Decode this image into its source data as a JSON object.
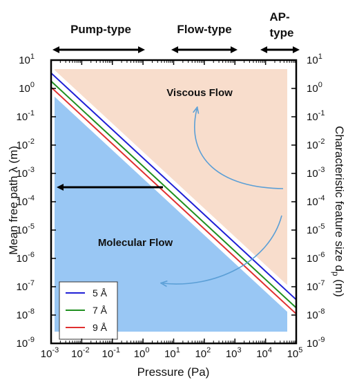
{
  "chart_data": {
    "type": "line",
    "xlabel": "Pressure (Pa)",
    "ylabel_left": "Mean free path λ (m)",
    "ylabel_right": "Characteristic feature size d",
    "ylabel_right_sub": "p",
    "ylabel_right_unit": " (m)",
    "x_scale": "log",
    "y_scale": "log",
    "xlim": [
      0.001,
      100000
    ],
    "ylim": [
      1e-09,
      10
    ],
    "x_ticks": [
      {
        "base": "10",
        "exp": "-3"
      },
      {
        "base": "10",
        "exp": "-2"
      },
      {
        "base": "10",
        "exp": "-1"
      },
      {
        "base": "10",
        "exp": "0"
      },
      {
        "base": "10",
        "exp": "1"
      },
      {
        "base": "10",
        "exp": "2"
      },
      {
        "base": "10",
        "exp": "3"
      },
      {
        "base": "10",
        "exp": "4"
      },
      {
        "base": "10",
        "exp": "5"
      }
    ],
    "y_ticks": [
      {
        "base": "10",
        "exp": "1"
      },
      {
        "base": "10",
        "exp": "0"
      },
      {
        "base": "10",
        "exp": "-1"
      },
      {
        "base": "10",
        "exp": "-2"
      },
      {
        "base": "10",
        "exp": "-3"
      },
      {
        "base": "10",
        "exp": "-4"
      },
      {
        "base": "10",
        "exp": "-5"
      },
      {
        "base": "10",
        "exp": "-6"
      },
      {
        "base": "10",
        "exp": "-7"
      },
      {
        "base": "10",
        "exp": "-8"
      },
      {
        "base": "10",
        "exp": "-9"
      }
    ],
    "series": [
      {
        "name": "5 Å",
        "color": "#1f1fd6",
        "x": [
          0.001,
          100000
        ],
        "y": [
          3.5,
          3.5e-08
        ]
      },
      {
        "name": "7 Å",
        "color": "#1f8f1f",
        "x": [
          0.001,
          100000
        ],
        "y": [
          1.8,
          1.8e-08
        ]
      },
      {
        "name": "9 Å",
        "color": "#e03030",
        "x": [
          0.001,
          100000
        ],
        "y": [
          1.1,
          1.1e-08
        ]
      }
    ],
    "regions": [
      {
        "label": "Viscous Flow",
        "color": "#f8ddcc"
      },
      {
        "label": "Molecular Flow",
        "color": "#99c7f4"
      }
    ],
    "pressure_ranges": [
      {
        "label": "Pump-type",
        "x": [
          0.001,
          1
        ]
      },
      {
        "label": "Flow-type",
        "x": [
          10,
          1000
        ]
      },
      {
        "label": "AP-",
        "label2": "type",
        "x": [
          10000,
          100000
        ]
      }
    ],
    "legend_location": "bottom-left"
  }
}
